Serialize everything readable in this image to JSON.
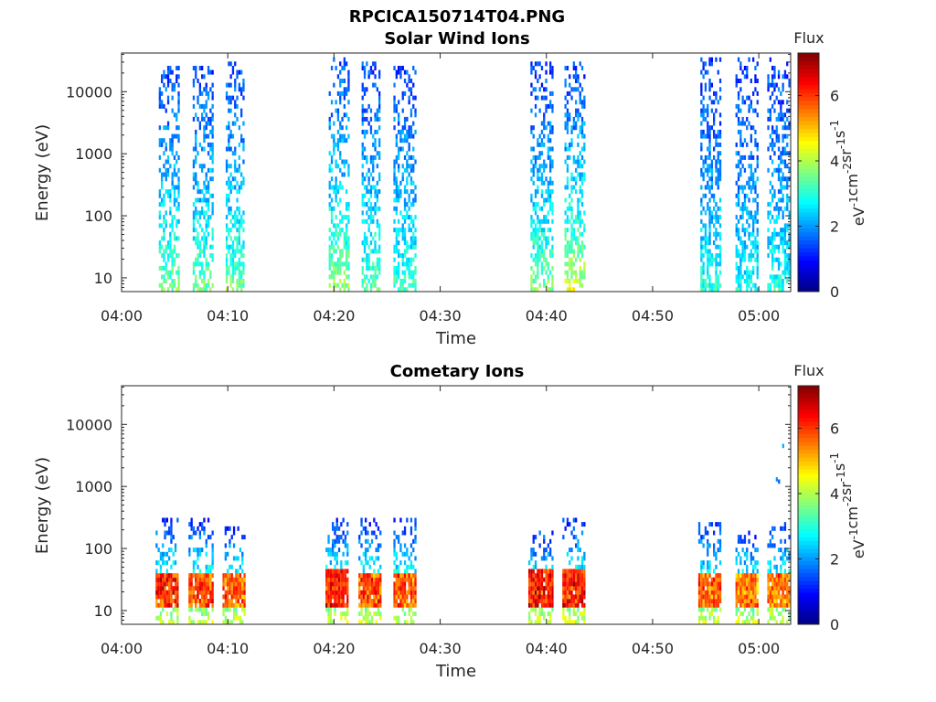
{
  "figure": {
    "title": "RPCICA150714T04.PNG"
  },
  "colors": {
    "colormap": [
      "#00007f",
      "#0000ff",
      "#007fff",
      "#00ffff",
      "#7fff7f",
      "#ffff00",
      "#ff7f00",
      "#ff0000",
      "#7f0000"
    ],
    "axes": "#262626"
  },
  "chart_data": [
    {
      "type": "heatmap",
      "title": "Solar Wind Ions",
      "xlabel": "Time",
      "ylabel": "Energy (eV)",
      "yscale": "log",
      "xlim_minutes_after_0400": [
        0,
        63
      ],
      "ylim": [
        6,
        42000
      ],
      "x_ticks": [
        {
          "label": "04:00",
          "minute": 0
        },
        {
          "label": "04:10",
          "minute": 10
        },
        {
          "label": "04:20",
          "minute": 20
        },
        {
          "label": "04:30",
          "minute": 30
        },
        {
          "label": "04:40",
          "minute": 40
        },
        {
          "label": "04:50",
          "minute": 50
        },
        {
          "label": "05:00",
          "minute": 60
        }
      ],
      "y_ticks": [
        {
          "label": "10",
          "value": 10
        },
        {
          "label": "100",
          "value": 100
        },
        {
          "label": "1000",
          "value": 1000
        },
        {
          "label": "10000",
          "value": 10000
        }
      ],
      "colorbar": {
        "title": "Flux",
        "label": "eV",
        "label_parts": [
          "eV",
          "-1",
          "cm",
          "-2",
          "sr",
          "-1",
          "s",
          "-1"
        ],
        "range": [
          0,
          7.3
        ],
        "ticks": [
          "0",
          "2",
          "4",
          "6"
        ]
      },
      "bursts": [
        {
          "start_min": 3.5,
          "end_min": 5.3,
          "emin": 6,
          "emax": 25000,
          "low_flux": 3.8,
          "high_flux": 1.4
        },
        {
          "start_min": 6.7,
          "end_min": 8.5,
          "emin": 6,
          "emax": 25000,
          "low_flux": 3.8,
          "high_flux": 1.4
        },
        {
          "start_min": 9.8,
          "end_min": 11.5,
          "emin": 6,
          "emax": 30000,
          "low_flux": 3.8,
          "high_flux": 1.4
        },
        {
          "start_min": 19.5,
          "end_min": 21.3,
          "emin": 6,
          "emax": 35000,
          "low_flux": 4.1,
          "high_flux": 1.4
        },
        {
          "start_min": 22.6,
          "end_min": 24.3,
          "emin": 6,
          "emax": 30000,
          "low_flux": 3.6,
          "high_flux": 1.4
        },
        {
          "start_min": 25.6,
          "end_min": 27.7,
          "emin": 6,
          "emax": 25000,
          "low_flux": 3.4,
          "high_flux": 1.4
        },
        {
          "start_min": 38.5,
          "end_min": 40.6,
          "emin": 6,
          "emax": 30000,
          "low_flux": 3.9,
          "high_flux": 1.3
        },
        {
          "start_min": 41.7,
          "end_min": 43.5,
          "emin": 6,
          "emax": 30000,
          "low_flux": 4.6,
          "high_flux": 1.3
        },
        {
          "start_min": 54.5,
          "end_min": 56.3,
          "emin": 6,
          "emax": 35000,
          "low_flux": 3.2,
          "high_flux": 1.3
        },
        {
          "start_min": 57.8,
          "end_min": 59.8,
          "emin": 6,
          "emax": 35000,
          "low_flux": 3.0,
          "high_flux": 1.3
        },
        {
          "start_min": 60.8,
          "end_min": 63.0,
          "emin": 6,
          "emax": 35000,
          "low_flux": 3.2,
          "high_flux": 1.3
        }
      ]
    },
    {
      "type": "heatmap",
      "title": "Cometary Ions",
      "xlabel": "Time",
      "ylabel": "Energy (eV)",
      "yscale": "log",
      "xlim_minutes_after_0400": [
        0,
        63
      ],
      "ylim": [
        6,
        42000
      ],
      "x_ticks": [
        {
          "label": "04:00",
          "minute": 0
        },
        {
          "label": "04:10",
          "minute": 10
        },
        {
          "label": "04:20",
          "minute": 20
        },
        {
          "label": "04:30",
          "minute": 30
        },
        {
          "label": "04:40",
          "minute": 40
        },
        {
          "label": "04:50",
          "minute": 50
        },
        {
          "label": "05:00",
          "minute": 60
        }
      ],
      "y_ticks": [
        {
          "label": "10",
          "value": 10
        },
        {
          "label": "100",
          "value": 100
        },
        {
          "label": "1000",
          "value": 1000
        },
        {
          "label": "10000",
          "value": 10000
        }
      ],
      "colorbar": {
        "title": "Flux",
        "label": "eV",
        "label_parts": [
          "eV",
          "-1",
          "cm",
          "-2",
          "sr",
          "-1",
          "s",
          "-1"
        ],
        "range": [
          0,
          7.3
        ],
        "ticks": [
          "0",
          "2",
          "4",
          "6"
        ]
      },
      "bursts": [
        {
          "start_min": 3.2,
          "end_min": 5.3,
          "emin": 6,
          "emax": 300,
          "core_flux": 6.6,
          "core_emin": 12,
          "core_emax": 40
        },
        {
          "start_min": 6.3,
          "end_min": 8.5,
          "emin": 6,
          "emax": 300,
          "core_flux": 6.5,
          "core_emin": 12,
          "core_emax": 40
        },
        {
          "start_min": 9.5,
          "end_min": 11.5,
          "emin": 6,
          "emax": 220,
          "core_flux": 6.2,
          "core_emin": 12,
          "core_emax": 40
        },
        {
          "start_min": 19.2,
          "end_min": 21.3,
          "emin": 6,
          "emax": 300,
          "core_flux": 6.8,
          "core_emin": 12,
          "core_emax": 45
        },
        {
          "start_min": 22.3,
          "end_min": 24.3,
          "emin": 6,
          "emax": 300,
          "core_flux": 6.3,
          "core_emin": 12,
          "core_emax": 40
        },
        {
          "start_min": 25.6,
          "end_min": 27.7,
          "emin": 6,
          "emax": 300,
          "core_flux": 6.4,
          "core_emin": 12,
          "core_emax": 40
        },
        {
          "start_min": 38.3,
          "end_min": 40.6,
          "emin": 6,
          "emax": 200,
          "core_flux": 6.8,
          "core_emin": 12,
          "core_emax": 45
        },
        {
          "start_min": 41.5,
          "end_min": 43.5,
          "emin": 6,
          "emax": 300,
          "core_flux": 6.8,
          "core_emin": 12,
          "core_emax": 45
        },
        {
          "start_min": 54.3,
          "end_min": 56.3,
          "emin": 6,
          "emax": 250,
          "core_flux": 6.3,
          "core_emin": 12,
          "core_emax": 40
        },
        {
          "start_min": 57.8,
          "end_min": 59.8,
          "emin": 6,
          "emax": 200,
          "core_flux": 6.0,
          "core_emin": 12,
          "core_emax": 40
        },
        {
          "start_min": 60.8,
          "end_min": 63.0,
          "emin": 6,
          "emax": 250,
          "core_flux": 6.2,
          "core_emin": 12,
          "core_emax": 40
        }
      ],
      "isolated_points": [
        {
          "minute": 62.2,
          "energy": 4500,
          "flux": 2.2
        },
        {
          "minute": 61.6,
          "energy": 1300,
          "flux": 2.0
        },
        {
          "minute": 61.8,
          "energy": 1200,
          "flux": 1.6
        }
      ]
    }
  ]
}
